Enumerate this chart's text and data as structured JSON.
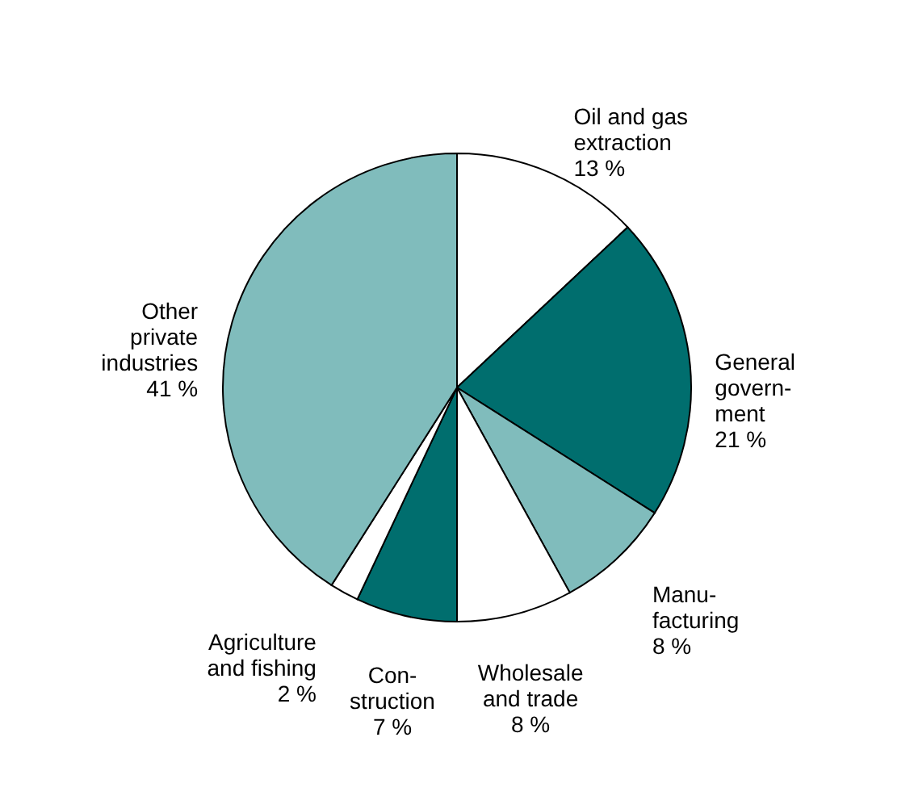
{
  "chart_data": {
    "type": "pie",
    "categories": [
      "Oil and gas\nextraction",
      "General\ngovern-\nment",
      "Manu-\nfacturing",
      "Wholesale\nand trade",
      "Con-\nstruction",
      "Agriculture\nand fishing",
      "Other\nprivate\nindustries"
    ],
    "values": [
      13,
      21,
      8,
      8,
      7,
      2,
      41
    ],
    "colors": [
      "#ffffff",
      "#006e6e",
      "#80bcbc",
      "#ffffff",
      "#006e6e",
      "#ffffff",
      "#80bcbc"
    ],
    "value_labels": [
      "13 %",
      "21 %",
      "8 %",
      "8 %",
      "7 %",
      "2 %",
      "41 %"
    ]
  }
}
